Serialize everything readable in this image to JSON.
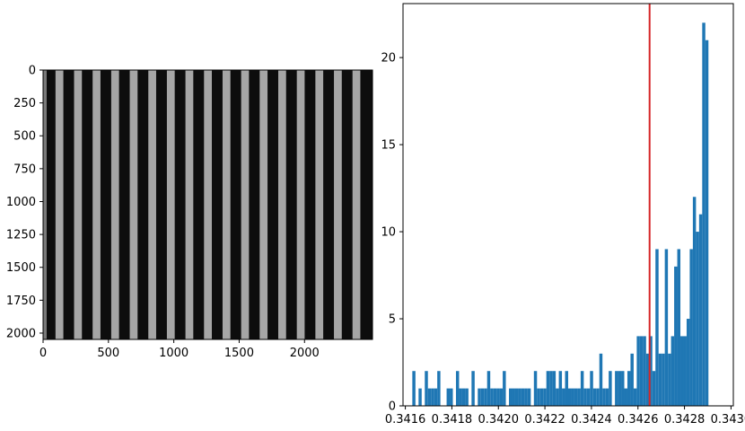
{
  "chart_data": [
    {
      "type": "image",
      "description_of_content": "grayscale vertical stripe pattern",
      "x_ticks": [
        "0",
        "500",
        "1000",
        "1500",
        "2000"
      ],
      "x_tick_values": [
        0,
        500,
        1000,
        1500,
        2000
      ],
      "y_ticks": [
        "0",
        "250",
        "500",
        "750",
        "1000",
        "1250",
        "1500",
        "1750",
        "2000"
      ],
      "y_tick_values": [
        0,
        250,
        500,
        750,
        1000,
        1250,
        1500,
        1750,
        2000
      ],
      "xlim": [
        0,
        2520
      ],
      "ylim": [
        2048,
        0
      ],
      "stripes": {
        "count": 17,
        "period": 142,
        "first_light_start": 95,
        "light_width": 60
      },
      "colors": {
        "background": "#0d0d0d",
        "stripe": "#a6a6a6",
        "edge_light": "#7a7a7a"
      }
    },
    {
      "type": "bar",
      "subtype": "histogram",
      "x_ticks": [
        "0.3416",
        "0.3418",
        "0.3420",
        "0.3422",
        "0.3424",
        "0.3426",
        "0.3428",
        "0.3430"
      ],
      "x_tick_values": [
        0.3416,
        0.3418,
        0.342,
        0.3422,
        0.3424,
        0.3426,
        0.3428,
        0.343
      ],
      "y_ticks": [
        "0",
        "5",
        "10",
        "15",
        "20"
      ],
      "y_tick_values": [
        0,
        5,
        10,
        15,
        20
      ],
      "xlim": [
        0.34159,
        0.34301
      ],
      "ylim": [
        0,
        23.1
      ],
      "bin_start": 0.34163,
      "bin_width": 1.34e-05,
      "counts": [
        2,
        0,
        1,
        0,
        2,
        1,
        1,
        1,
        2,
        0,
        0,
        1,
        1,
        0,
        2,
        1,
        1,
        1,
        0,
        2,
        0,
        1,
        1,
        1,
        2,
        1,
        1,
        1,
        1,
        2,
        0,
        1,
        1,
        1,
        1,
        1,
        1,
        1,
        0,
        2,
        1,
        1,
        1,
        2,
        2,
        2,
        1,
        2,
        1,
        2,
        1,
        1,
        1,
        1,
        2,
        1,
        1,
        2,
        1,
        1,
        3,
        1,
        1,
        2,
        0,
        2,
        2,
        2,
        1,
        2,
        3,
        1,
        4,
        4,
        4,
        3,
        4,
        2,
        9,
        3,
        3,
        9,
        3,
        4,
        8,
        9,
        4,
        4,
        5,
        9,
        12,
        10,
        11,
        22,
        21
      ],
      "vline_x": 0.34265,
      "colors": {
        "bar": "#1f77b4",
        "vline": "#d62728"
      }
    }
  ]
}
